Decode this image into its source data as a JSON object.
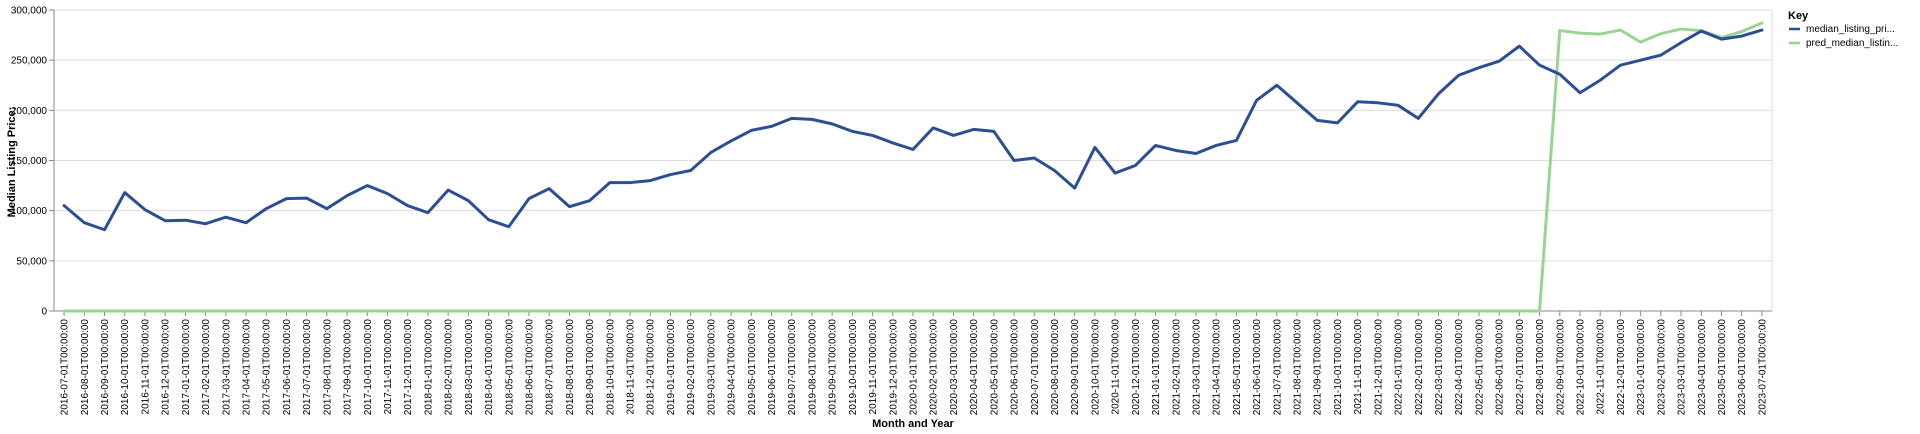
{
  "chart_data": {
    "type": "line",
    "title": "",
    "xlabel": "Month and Year",
    "ylabel": "Median Listing Price:",
    "ylim": [
      0,
      300000
    ],
    "yticks": [
      0,
      50000,
      100000,
      150000,
      200000,
      250000,
      300000
    ],
    "ytick_labels": [
      "0",
      "50,000",
      "100,000",
      "150,000",
      "200,000",
      "250,000",
      "300,000"
    ],
    "grid": true,
    "legend_title": "Key",
    "legend_position": "right",
    "categories": [
      "2016-07-01T00:00:00",
      "2016-08-01T00:00:00",
      "2016-09-01T00:00:00",
      "2016-10-01T00:00:00",
      "2016-11-01T00:00:00",
      "2016-12-01T00:00:00",
      "2017-01-01T00:00:00",
      "2017-02-01T00:00:00",
      "2017-03-01T00:00:00",
      "2017-04-01T00:00:00",
      "2017-05-01T00:00:00",
      "2017-06-01T00:00:00",
      "2017-07-01T00:00:00",
      "2017-08-01T00:00:00",
      "2017-09-01T00:00:00",
      "2017-10-01T00:00:00",
      "2017-11-01T00:00:00",
      "2017-12-01T00:00:00",
      "2018-01-01T00:00:00",
      "2018-02-01T00:00:00",
      "2018-03-01T00:00:00",
      "2018-04-01T00:00:00",
      "2018-05-01T00:00:00",
      "2018-06-01T00:00:00",
      "2018-07-01T00:00:00",
      "2018-08-01T00:00:00",
      "2018-09-01T00:00:00",
      "2018-10-01T00:00:00",
      "2018-11-01T00:00:00",
      "2018-12-01T00:00:00",
      "2019-01-01T00:00:00",
      "2019-02-01T00:00:00",
      "2019-03-01T00:00:00",
      "2019-04-01T00:00:00",
      "2019-05-01T00:00:00",
      "2019-06-01T00:00:00",
      "2019-07-01T00:00:00",
      "2019-08-01T00:00:00",
      "2019-09-01T00:00:00",
      "2019-10-01T00:00:00",
      "2019-11-01T00:00:00",
      "2019-12-01T00:00:00",
      "2020-01-01T00:00:00",
      "2020-02-01T00:00:00",
      "2020-03-01T00:00:00",
      "2020-04-01T00:00:00",
      "2020-05-01T00:00:00",
      "2020-06-01T00:00:00",
      "2020-07-01T00:00:00",
      "2020-08-01T00:00:00",
      "2020-09-01T00:00:00",
      "2020-10-01T00:00:00",
      "2020-11-01T00:00:00",
      "2020-12-01T00:00:00",
      "2021-01-01T00:00:00",
      "2021-02-01T00:00:00",
      "2021-03-01T00:00:00",
      "2021-04-01T00:00:00",
      "2021-05-01T00:00:00",
      "2021-06-01T00:00:00",
      "2021-07-01T00:00:00",
      "2021-08-01T00:00:00",
      "2021-09-01T00:00:00",
      "2021-10-01T00:00:00",
      "2021-11-01T00:00:00",
      "2021-12-01T00:00:00",
      "2022-01-01T00:00:00",
      "2022-02-01T00:00:00",
      "2022-03-01T00:00:00",
      "2022-04-01T00:00:00",
      "2022-05-01T00:00:00",
      "2022-06-01T00:00:00",
      "2022-07-01T00:00:00",
      "2022-08-01T00:00:00",
      "2022-09-01T00:00:00",
      "2022-10-01T00:00:00",
      "2022-11-01T00:00:00",
      "2022-12-01T00:00:00",
      "2023-01-01T00:00:00",
      "2023-02-01T00:00:00",
      "2023-03-01T00:00:00",
      "2023-04-01T00:00:00",
      "2023-05-01T00:00:00",
      "2023-06-01T00:00:00",
      "2023-07-01T00:00:00"
    ],
    "series": [
      {
        "name": "median_listing_pri...",
        "color": "#2c4f94",
        "values": [
          105000,
          88000,
          81000,
          118000,
          101000,
          90000,
          90500,
          87000,
          93500,
          88000,
          102000,
          112000,
          112500,
          102000,
          115000,
          125000,
          117000,
          105000,
          98000,
          120500,
          110000,
          91000,
          84000,
          112000,
          122000,
          104000,
          110000,
          128000,
          128000,
          130000,
          136000,
          140000,
          158000,
          169500,
          180000,
          184000,
          192000,
          191000,
          186500,
          179000,
          175000,
          167500,
          161000,
          182500,
          175000,
          181000,
          179000,
          150000,
          152500,
          140000,
          122500,
          163000,
          137500,
          145000,
          165000,
          160000,
          157000,
          165000,
          170000,
          210000,
          225000,
          207500,
          190000,
          187500,
          208500,
          207500,
          205000,
          192000,
          216500,
          235000,
          242500,
          249000,
          264000,
          245000,
          236000,
          217500,
          230000,
          245000,
          250000,
          255000,
          267500,
          279000,
          271000,
          274000,
          280000
        ]
      },
      {
        "name": "pred_median_listin...",
        "color": "#98d593",
        "values": [
          0,
          0,
          0,
          0,
          0,
          0,
          0,
          0,
          0,
          0,
          0,
          0,
          0,
          0,
          0,
          0,
          0,
          0,
          0,
          0,
          0,
          0,
          0,
          0,
          0,
          0,
          0,
          0,
          0,
          0,
          0,
          0,
          0,
          0,
          0,
          0,
          0,
          0,
          0,
          0,
          0,
          0,
          0,
          0,
          0,
          0,
          0,
          0,
          0,
          0,
          0,
          0,
          0,
          0,
          0,
          0,
          0,
          0,
          0,
          0,
          0,
          0,
          0,
          0,
          0,
          0,
          0,
          0,
          0,
          0,
          0,
          0,
          0,
          0,
          279500,
          277000,
          276000,
          280000,
          268000,
          276500,
          281000,
          279500,
          272500,
          278500,
          287000
        ]
      }
    ]
  }
}
